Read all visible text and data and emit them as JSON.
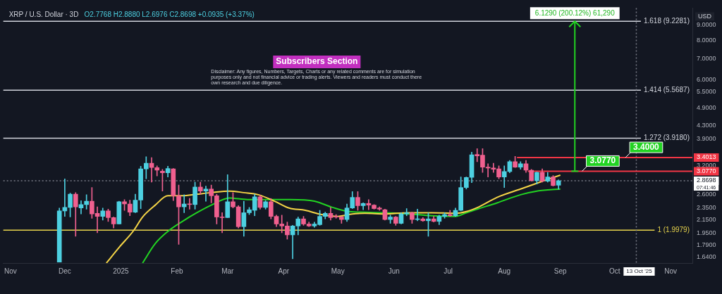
{
  "chart_data": {
    "type": "candlestick",
    "title": "XRP / U.S. Dollar · 3D",
    "subtitle": "O2.7768 H2.8880 L2.6976 C2.8698 +0.0935 (+3.37%)",
    "ylabel": "USD",
    "log": true,
    "x": [
      "2024-11-28",
      "2024-12-01",
      "2024-12-04",
      "2024-12-07",
      "2024-12-10",
      "2024-12-13",
      "2024-12-16",
      "2024-12-19",
      "2024-12-22",
      "2024-12-25",
      "2024-12-28",
      "2024-12-31",
      "2025-01-03",
      "2025-01-06",
      "2025-01-09",
      "2025-01-12",
      "2025-01-15",
      "2025-01-18",
      "2025-01-21",
      "2025-01-24",
      "2025-01-27",
      "2025-01-30",
      "2025-02-02",
      "2025-02-05",
      "2025-02-08",
      "2025-02-11",
      "2025-02-14",
      "2025-02-17",
      "2025-02-20",
      "2025-02-23",
      "2025-02-26",
      "2025-03-01",
      "2025-03-04",
      "2025-03-07",
      "2025-03-10",
      "2025-03-13",
      "2025-03-16",
      "2025-03-19",
      "2025-03-22",
      "2025-03-25",
      "2025-03-28",
      "2025-03-31",
      "2025-04-03",
      "2025-04-06",
      "2025-04-09",
      "2025-04-12",
      "2025-04-15",
      "2025-04-18",
      "2025-04-21",
      "2025-04-24",
      "2025-04-27",
      "2025-04-30",
      "2025-05-03",
      "2025-05-06",
      "2025-05-09",
      "2025-05-12",
      "2025-05-15",
      "2025-05-18",
      "2025-05-21",
      "2025-05-24",
      "2025-05-27",
      "2025-05-30",
      "2025-06-02",
      "2025-06-05",
      "2025-06-08",
      "2025-06-11",
      "2025-06-14",
      "2025-06-17",
      "2025-06-20",
      "2025-06-23",
      "2025-06-26",
      "2025-06-29",
      "2025-07-02",
      "2025-07-05",
      "2025-07-08",
      "2025-07-11",
      "2025-07-14",
      "2025-07-17",
      "2025-07-20",
      "2025-07-23",
      "2025-07-26",
      "2025-07-29",
      "2025-08-01",
      "2025-08-04",
      "2025-08-07",
      "2025-08-10",
      "2025-08-13",
      "2025-08-16",
      "2025-08-19",
      "2025-08-22",
      "2025-08-25",
      "2025-08-28",
      "2025-08-31"
    ],
    "ohlc": [
      [
        1.58,
        2.35,
        1.58,
        2.3
      ],
      [
        2.3,
        2.91,
        2.21,
        2.36
      ],
      [
        2.36,
        2.62,
        2.2,
        2.6
      ],
      [
        2.6,
        2.63,
        1.91,
        2.37
      ],
      [
        2.35,
        2.48,
        2.25,
        2.41
      ],
      [
        2.41,
        2.59,
        2.33,
        2.47
      ],
      [
        2.47,
        2.73,
        2.18,
        2.25
      ],
      [
        2.26,
        2.37,
        1.96,
        2.21
      ],
      [
        2.21,
        2.35,
        2.15,
        2.3
      ],
      [
        2.3,
        2.33,
        2.13,
        2.19
      ],
      [
        2.19,
        2.2,
        2.03,
        2.09
      ],
      [
        2.09,
        2.47,
        2.09,
        2.46
      ],
      [
        2.46,
        2.5,
        2.31,
        2.42
      ],
      [
        2.42,
        2.49,
        2.22,
        2.28
      ],
      [
        2.28,
        2.6,
        2.27,
        2.49
      ],
      [
        2.49,
        3.19,
        2.34,
        3.13
      ],
      [
        3.13,
        3.42,
        2.91,
        3.26
      ],
      [
        3.26,
        3.4,
        2.84,
        3.16
      ],
      [
        3.16,
        3.2,
        2.97,
        3.1
      ],
      [
        3.08,
        3.12,
        2.66,
        3.04
      ],
      [
        3.04,
        3.19,
        2.95,
        3.14
      ],
      [
        3.13,
        3.14,
        2.48,
        2.57
      ],
      [
        2.57,
        2.78,
        1.8,
        2.37
      ],
      [
        2.37,
        2.59,
        2.27,
        2.42
      ],
      [
        2.42,
        2.52,
        2.33,
        2.41
      ],
      [
        2.41,
        2.84,
        2.33,
        2.74
      ],
      [
        2.74,
        2.84,
        2.6,
        2.66
      ],
      [
        2.66,
        2.76,
        2.47,
        2.7
      ],
      [
        2.7,
        2.78,
        2.44,
        2.57
      ],
      [
        2.57,
        2.6,
        2.09,
        2.2
      ],
      [
        2.2,
        2.27,
        1.96,
        2.19
      ],
      [
        2.19,
        3.0,
        2.19,
        2.46
      ],
      [
        2.46,
        2.63,
        2.35,
        2.37
      ],
      [
        2.37,
        2.39,
        2.03,
        2.05
      ],
      [
        2.05,
        2.47,
        1.91,
        2.27
      ],
      [
        2.27,
        2.36,
        2.24,
        2.32
      ],
      [
        2.31,
        2.6,
        2.22,
        2.55
      ],
      [
        2.55,
        2.58,
        2.33,
        2.36
      ],
      [
        2.36,
        2.48,
        2.33,
        2.46
      ],
      [
        2.46,
        2.52,
        2.17,
        2.21
      ],
      [
        2.21,
        2.23,
        2.05,
        2.09
      ],
      [
        2.09,
        2.23,
        1.96,
        2.06
      ],
      [
        2.06,
        2.12,
        1.87,
        1.93
      ],
      [
        1.93,
        2.07,
        1.62,
        2.06
      ],
      [
        2.06,
        2.2,
        1.93,
        2.17
      ],
      [
        2.17,
        2.21,
        2.07,
        2.09
      ],
      [
        2.09,
        2.12,
        2.05,
        2.06
      ],
      [
        2.06,
        2.12,
        2.04,
        2.09
      ],
      [
        2.08,
        2.31,
        2.07,
        2.21
      ],
      [
        2.21,
        2.28,
        2.17,
        2.26
      ],
      [
        2.26,
        2.36,
        2.15,
        2.19
      ],
      [
        2.21,
        2.24,
        2.18,
        2.2
      ],
      [
        2.2,
        2.21,
        2.1,
        2.16
      ],
      [
        2.16,
        2.42,
        2.13,
        2.35
      ],
      [
        2.35,
        2.65,
        2.34,
        2.54
      ],
      [
        2.54,
        2.65,
        2.31,
        2.39
      ],
      [
        2.39,
        2.44,
        2.32,
        2.43
      ],
      [
        2.43,
        2.5,
        2.32,
        2.4
      ],
      [
        2.4,
        2.41,
        2.33,
        2.34
      ],
      [
        2.35,
        2.37,
        2.31,
        2.33
      ],
      [
        2.32,
        2.33,
        2.15,
        2.16
      ],
      [
        2.16,
        2.23,
        2.1,
        2.2
      ],
      [
        2.2,
        2.21,
        2.07,
        2.1
      ],
      [
        2.1,
        2.27,
        2.09,
        2.25
      ],
      [
        2.25,
        2.34,
        2.22,
        2.27
      ],
      [
        2.27,
        2.28,
        2.1,
        2.16
      ],
      [
        2.16,
        2.33,
        2.14,
        2.17
      ],
      [
        2.17,
        2.19,
        2.13,
        2.14
      ],
      [
        2.14,
        2.27,
        1.91,
        2.17
      ],
      [
        2.17,
        2.21,
        2.12,
        2.13
      ],
      [
        2.13,
        2.23,
        2.08,
        2.21
      ],
      [
        2.21,
        2.27,
        2.18,
        2.24
      ],
      [
        2.24,
        2.31,
        2.21,
        2.22
      ],
      [
        2.22,
        2.35,
        2.21,
        2.31
      ],
      [
        2.31,
        2.95,
        2.3,
        2.73
      ],
      [
        2.73,
        2.95,
        2.7,
        2.94
      ],
      [
        2.94,
        3.54,
        2.83,
        3.47
      ],
      [
        3.48,
        3.63,
        3.3,
        3.44
      ],
      [
        3.46,
        3.63,
        3.05,
        3.17
      ],
      [
        3.17,
        3.25,
        2.95,
        3.15
      ],
      [
        3.15,
        3.26,
        3.05,
        3.12
      ],
      [
        3.13,
        3.2,
        2.91,
        2.95
      ],
      [
        2.95,
        3.2,
        2.73,
        3.07
      ],
      [
        3.07,
        3.33,
        3.04,
        3.3
      ],
      [
        3.3,
        3.43,
        3.16,
        3.17
      ],
      [
        3.17,
        3.3,
        3.12,
        3.25
      ],
      [
        3.25,
        3.33,
        3.05,
        3.1
      ],
      [
        3.1,
        3.12,
        2.86,
        2.87
      ],
      [
        2.87,
        3.06,
        2.8,
        3.05
      ],
      [
        3.05,
        3.13,
        2.84,
        2.86
      ],
      [
        2.86,
        3.05,
        2.84,
        2.95
      ],
      [
        2.95,
        2.98,
        2.76,
        2.77
      ],
      [
        2.7768,
        2.888,
        2.6976,
        2.8698
      ]
    ],
    "colors": [
      "#4dd0e1",
      "#4dd0e1",
      "#4dd0e1",
      "#f0608f",
      "#4dd0e1",
      "#4dd0e1",
      "#f0608f",
      "#f0608f",
      "#4dd0e1",
      "#f0608f",
      "#f0608f",
      "#4dd0e1",
      "#f0608f",
      "#f0608f",
      "#4dd0e1",
      "#4dd0e1",
      "#4dd0e1",
      "#f0608f",
      "#f0608f",
      "#f0608f",
      "#4dd0e1",
      "#f0608f",
      "#f0608f",
      "#4dd0e1",
      "#f0608f",
      "#4dd0e1",
      "#f0608f",
      "#4dd0e1",
      "#f0608f",
      "#f0608f",
      "#f0608f",
      "#4dd0e1",
      "#f0608f",
      "#f0608f",
      "#4dd0e1",
      "#4dd0e1",
      "#4dd0e1",
      "#f0608f",
      "#4dd0e1",
      "#f0608f",
      "#f0608f",
      "#f0608f",
      "#f0608f",
      "#4dd0e1",
      "#4dd0e1",
      "#f0608f",
      "#f0608f",
      "#4dd0e1",
      "#4dd0e1",
      "#4dd0e1",
      "#f0608f",
      "#f0608f",
      "#f0608f",
      "#4dd0e1",
      "#4dd0e1",
      "#f0608f",
      "#4dd0e1",
      "#f0608f",
      "#f0608f",
      "#f0608f",
      "#f0608f",
      "#4dd0e1",
      "#f0608f",
      "#4dd0e1",
      "#4dd0e1",
      "#f0608f",
      "#4dd0e1",
      "#f0608f",
      "#4dd0e1",
      "#f0608f",
      "#4dd0e1",
      "#4dd0e1",
      "#f0608f",
      "#4dd0e1",
      "#4dd0e1",
      "#4dd0e1",
      "#4dd0e1",
      "#f0608f",
      "#f0608f",
      "#f0608f",
      "#f0608f",
      "#f0608f",
      "#4dd0e1",
      "#4dd0e1",
      "#f0608f",
      "#4dd0e1",
      "#f0608f",
      "#f0608f",
      "#4dd0e1",
      "#f0608f",
      "#4dd0e1",
      "#f0608f",
      "#4dd0e1"
    ],
    "series": [
      {
        "type": "line",
        "color": "#f5d547",
        "x": [
          "2024-12-24",
          "2024-12-31",
          "2025-01-08",
          "2025-01-13",
          "2025-01-20",
          "2025-01-27",
          "2025-02-04",
          "2025-02-12",
          "2025-02-20",
          "2025-03-02",
          "2025-03-10",
          "2025-03-18",
          "2025-03-27",
          "2025-04-04",
          "2025-04-13",
          "2025-04-22",
          "2025-05-01",
          "2025-05-09",
          "2025-05-16",
          "2025-05-27",
          "2025-06-09",
          "2025-06-22",
          "2025-07-05",
          "2025-07-11",
          "2025-07-18",
          "2025-07-28",
          "2025-08-10",
          "2025-08-23",
          "2025-09-01"
        ],
        "values": [
          1.57,
          1.76,
          1.99,
          2.2,
          2.4,
          2.57,
          2.57,
          2.6,
          2.63,
          2.66,
          2.63,
          2.59,
          2.47,
          2.35,
          2.31,
          2.24,
          2.21,
          2.25,
          2.26,
          2.25,
          2.27,
          2.27,
          2.26,
          2.29,
          2.37,
          2.54,
          2.7,
          2.87,
          2.99
        ]
      },
      {
        "type": "line",
        "color": "#22d322",
        "x": [
          "2025-01-13",
          "2025-01-20",
          "2025-01-27",
          "2025-02-04",
          "2025-02-12",
          "2025-02-20",
          "2025-03-02",
          "2025-03-12",
          "2025-03-27",
          "2025-04-05",
          "2025-04-18",
          "2025-04-28",
          "2025-05-07",
          "2025-05-27",
          "2025-06-09",
          "2025-06-22",
          "2025-07-05",
          "2025-07-11",
          "2025-07-18",
          "2025-07-28",
          "2025-08-10",
          "2025-08-19",
          "2025-09-01"
        ],
        "values": [
          1.57,
          1.81,
          1.98,
          2.13,
          2.27,
          2.4,
          2.53,
          2.5,
          2.5,
          2.5,
          2.47,
          2.36,
          2.29,
          2.27,
          2.25,
          2.22,
          2.21,
          2.27,
          2.34,
          2.44,
          2.59,
          2.66,
          2.7
        ]
      },
      {
        "type": "line",
        "color": "#f23645",
        "x": [
          "2025-08-08",
          "2025-11-13"
        ],
        "values": [
          3.4013,
          3.4013
        ],
        "value_labels": [
          null,
          "3.4013"
        ]
      },
      {
        "type": "line",
        "color": "#f23645",
        "x": [
          "2025-08-14",
          "2025-11-13"
        ],
        "values": [
          3.077,
          3.077
        ],
        "value_labels": [
          null,
          "3.0770"
        ]
      }
    ],
    "xlim": [
      "2024-10-28",
      "2025-11-13"
    ],
    "xticks": [
      {
        "value": "2024-11-01",
        "label": "Nov"
      },
      {
        "value": "2024-12-01",
        "label": "Dec"
      },
      {
        "value": "2025-01-01",
        "label": "2025"
      },
      {
        "value": "2025-02-01",
        "label": "Feb"
      },
      {
        "value": "2025-03-01",
        "label": "Mar"
      },
      {
        "value": "2025-04-01",
        "label": "Apr"
      },
      {
        "value": "2025-05-01",
        "label": "May"
      },
      {
        "value": "2025-06-01",
        "label": "Jun"
      },
      {
        "value": "2025-07-01",
        "label": "Jul"
      },
      {
        "value": "2025-08-01",
        "label": "Aug"
      },
      {
        "value": "2025-09-01",
        "label": "Sep"
      },
      {
        "value": "2025-10-01",
        "label": "Oct"
      },
      {
        "value": "2025-11-01",
        "label": "Nov"
      }
    ],
    "ylim": [
      1.57,
      10.17
    ],
    "yticks": [
      {
        "value": 1.64,
        "label": "1.6400"
      },
      {
        "value": 1.79,
        "label": "1.7900"
      },
      {
        "value": 1.95,
        "label": "1.9500"
      },
      {
        "value": 2.15,
        "label": "2.1500"
      },
      {
        "value": 2.35,
        "label": "2.3500"
      },
      {
        "value": 2.6,
        "label": "2.6000"
      },
      {
        "value": 3.2,
        "label": "3.2000"
      },
      {
        "value": 3.9,
        "label": "3.9000"
      },
      {
        "value": 4.3,
        "label": "4.3000"
      },
      {
        "value": 4.9,
        "label": "4.9000"
      },
      {
        "value": 5.5,
        "label": "5.5000"
      },
      {
        "value": 6,
        "label": "6.0000"
      },
      {
        "value": 7,
        "label": "7.0000"
      },
      {
        "value": 8,
        "label": "8.0000"
      },
      {
        "value": 9,
        "label": "9.0000"
      }
    ],
    "ref_lines": [
      {
        "axis": "y",
        "value": 9.2281,
        "label": "1.618 (9.2281)",
        "color": "#d1d4dc",
        "line_style": "solid"
      },
      {
        "axis": "y",
        "value": 5.5687,
        "label": "1.414 (5.5687)",
        "color": "#d1d4dc",
        "line_style": "solid"
      },
      {
        "axis": "y",
        "value": 3.918,
        "label": "1.272 (3.9180)",
        "color": "#d1d4dc",
        "line_style": "solid"
      },
      {
        "axis": "y",
        "value": 1.9979,
        "label": "1 (1.9979)",
        "color": "#e8d44d",
        "line_style": "solid"
      },
      {
        "axis": "y",
        "value": 2.8698,
        "label": "2.8698",
        "color": "#787b86",
        "line_style": "dotted"
      },
      {
        "axis": "x",
        "value": "2025-10-13",
        "label": "13 Oct '25",
        "color": "#787b86",
        "line_style": "dotted"
      }
    ],
    "annotations": [
      "Subscribers Section",
      "Disclaimer: Any figures, Numbers, Targets, Charts or any related comments are for simulation purposes only and not financial advice or trading alerts. Viewers and readers must conduct there own research and due diligence.",
      {
        "text": "6.1290 (200.12%) 61,290",
        "x": "2025-09-09",
        "y": 9.2281
      },
      {
        "text": "3.0770",
        "x": "2025-09-13",
        "y": 3.077
      },
      {
        "text": "3.4000",
        "x": "2025-10-07",
        "y": 3.4
      },
      "07:41:46"
    ]
  }
}
